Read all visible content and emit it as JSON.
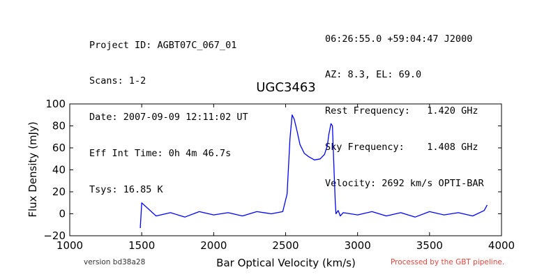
{
  "header": {
    "left": [
      "Project ID: AGBT07C_067_01",
      "Scans: 1-2",
      "Date: 2007-09-09 12:11:02 UT",
      "Eff Int Time: 0h 4m 46.7s",
      "Tsys: 16.85 K"
    ],
    "right": [
      "06:26:55.0 +59:04:47 J2000",
      "AZ: 8.3, EL: 69.0",
      "Rest Frequency:   1.420 GHz",
      "Sky Frequency:    1.408 GHz",
      "Velocity: 2692 km/s OPTI-BAR"
    ]
  },
  "footer": {
    "version": "version bd38a28",
    "processed": "Processed by the GBT pipeline."
  },
  "colors": {
    "line": "#0000ff",
    "processed_text": "#e8433c"
  },
  "chart_data": {
    "type": "line",
    "title": "UGC3463",
    "xlabel": "Bar Optical Velocity (km/s)",
    "ylabel": "Flux Density (mJy)",
    "xlim": [
      1000,
      4000
    ],
    "ylim": [
      -20,
      100
    ],
    "xticks": [
      1000,
      1500,
      2000,
      2500,
      3000,
      3500,
      4000
    ],
    "yticks": [
      -20,
      0,
      20,
      40,
      60,
      80,
      100
    ],
    "grid": false,
    "series": [
      {
        "x": [
          1490,
          1500,
          1600,
          1700,
          1800,
          1900,
          2000,
          2100,
          2200,
          2300,
          2400,
          2480,
          2510,
          2530,
          2545,
          2560,
          2580,
          2600,
          2630,
          2660,
          2700,
          2740,
          2770,
          2790,
          2800,
          2815,
          2825,
          2835,
          2845,
          2850,
          2865,
          2880,
          2900,
          3000,
          3100,
          3200,
          3300,
          3400,
          3500,
          3600,
          3700,
          3800,
          3880,
          3900
        ],
        "y": [
          -13,
          10,
          -2,
          1,
          -3,
          2,
          -1,
          1,
          -2,
          2,
          0,
          2,
          18,
          68,
          90,
          86,
          75,
          63,
          55,
          52,
          49,
          50,
          54,
          62,
          72,
          82,
          80,
          45,
          10,
          0,
          3,
          -2,
          1,
          -1,
          2,
          -2,
          1,
          -3,
          2,
          -1,
          1,
          -2,
          3,
          8
        ]
      }
    ]
  }
}
